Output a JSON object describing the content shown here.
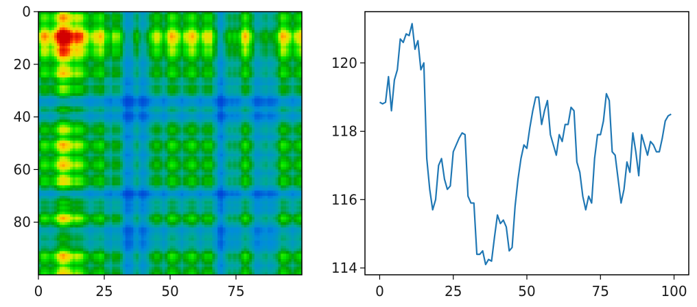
{
  "chart_data": [
    {
      "type": "heatmap",
      "title": "",
      "xlabel": "",
      "ylabel": "",
      "xlim": [
        0,
        100
      ],
      "ylim": [
        100,
        0
      ],
      "colormap": "nipy_spectral",
      "value_range": [
        0,
        1
      ],
      "xticks": [
        0,
        25,
        50,
        75
      ],
      "yticks": [
        0,
        20,
        40,
        60,
        80
      ],
      "grid": false,
      "rows": 100,
      "cols": 100,
      "hotspots": [
        {
          "center_x": 10,
          "center_y": 10,
          "spread": 5,
          "level": "high"
        },
        {
          "center_x": 36,
          "center_y": 36,
          "spread": 7,
          "level": "low"
        },
        {
          "center_x": 70,
          "center_y": 70,
          "spread": 4,
          "level": "low"
        },
        {
          "center_x": 85,
          "center_y": 36,
          "spread": 4,
          "level": "low"
        }
      ]
    },
    {
      "type": "line",
      "title": "",
      "xlabel": "",
      "ylabel": "",
      "xlim": [
        -5,
        105
      ],
      "ylim": [
        113.8,
        121.5
      ],
      "xticks": [
        0,
        25,
        50,
        75,
        100
      ],
      "yticks": [
        114,
        116,
        118,
        120
      ],
      "grid": false,
      "color": "#1f77b4",
      "x": [
        0,
        1,
        2,
        3,
        4,
        5,
        6,
        7,
        8,
        9,
        10,
        11,
        12,
        13,
        14,
        15,
        16,
        17,
        18,
        19,
        20,
        21,
        22,
        23,
        24,
        25,
        26,
        27,
        28,
        29,
        30,
        31,
        32,
        33,
        34,
        35,
        36,
        37,
        38,
        39,
        40,
        41,
        42,
        43,
        44,
        45,
        46,
        47,
        48,
        49,
        50,
        51,
        52,
        53,
        54,
        55,
        56,
        57,
        58,
        59,
        60,
        61,
        62,
        63,
        64,
        65,
        66,
        67,
        68,
        69,
        70,
        71,
        72,
        73,
        74,
        75,
        76,
        77,
        78,
        79,
        80,
        81,
        82,
        83,
        84,
        85,
        86,
        87,
        88,
        89,
        90,
        91,
        92,
        93,
        94,
        95,
        96,
        97,
        98,
        99
      ],
      "y": [
        118.85,
        118.8,
        118.85,
        119.6,
        118.6,
        119.5,
        119.8,
        120.7,
        120.6,
        120.85,
        120.8,
        121.15,
        120.4,
        120.65,
        119.8,
        120.0,
        117.2,
        116.3,
        115.7,
        116.0,
        117.0,
        117.2,
        116.6,
        116.3,
        116.4,
        117.4,
        117.6,
        117.8,
        117.95,
        117.9,
        116.1,
        115.9,
        115.9,
        114.4,
        114.4,
        114.5,
        114.1,
        114.25,
        114.2,
        114.9,
        115.55,
        115.3,
        115.4,
        115.2,
        114.5,
        114.6,
        115.8,
        116.6,
        117.2,
        117.6,
        117.5,
        118.1,
        118.6,
        119.0,
        119.0,
        118.2,
        118.6,
        118.9,
        117.9,
        117.6,
        117.3,
        117.9,
        117.7,
        118.2,
        118.2,
        118.7,
        118.6,
        117.1,
        116.8,
        116.1,
        115.7,
        116.1,
        115.9,
        117.2,
        117.9,
        117.9,
        118.3,
        119.1,
        118.9,
        117.4,
        117.3,
        116.6,
        115.9,
        116.3,
        117.1,
        116.8,
        117.95,
        117.4,
        116.7,
        117.9,
        117.6,
        117.3,
        117.7,
        117.6,
        117.4,
        117.4,
        117.8,
        118.3,
        118.45,
        118.5
      ]
    }
  ]
}
